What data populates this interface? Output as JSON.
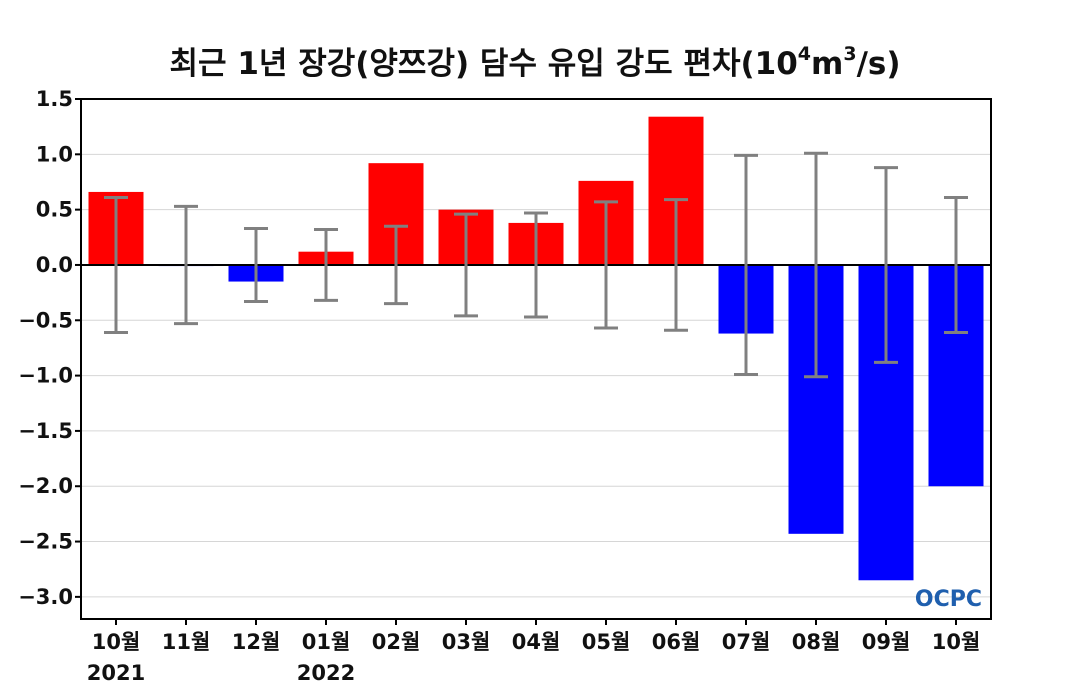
{
  "chart_data": {
    "type": "bar",
    "title_main": "최근 1년 장강(양쯔강) 담수 유입 강도 편차(10",
    "title_exp1": "4",
    "title_mid": "m",
    "title_exp2": "3",
    "title_end": "/s)",
    "categories": [
      "10월",
      "11월",
      "12월",
      "01월",
      "02월",
      "03월",
      "04월",
      "05월",
      "06월",
      "07월",
      "08월",
      "09월",
      "10월"
    ],
    "year_labels": [
      "2021",
      "2022"
    ],
    "values": [
      0.66,
      -0.01,
      -0.15,
      0.12,
      0.92,
      0.5,
      0.38,
      0.76,
      1.34,
      -0.62,
      -2.43,
      -2.85,
      -2.0
    ],
    "error": [
      0.61,
      0.53,
      0.33,
      0.32,
      0.35,
      0.46,
      0.47,
      0.57,
      0.59,
      0.99,
      1.01,
      0.88,
      0.61
    ],
    "ylim": [
      -3.2,
      1.5
    ],
    "yticks": [
      1.5,
      1.0,
      0.5,
      0.0,
      -0.5,
      -1.0,
      -1.5,
      -2.0,
      -2.5,
      -3.0
    ],
    "ytick_labels": [
      "1.5",
      "1.0",
      "0.5",
      "0.0",
      "−0.5",
      "−1.0",
      "−1.5",
      "−2.0",
      "−2.5",
      "−3.0"
    ],
    "positive_color": "#ff0000",
    "negative_color": "#0000ff",
    "errorbar_color": "#808080",
    "grid": true,
    "watermark": "OCPC"
  }
}
